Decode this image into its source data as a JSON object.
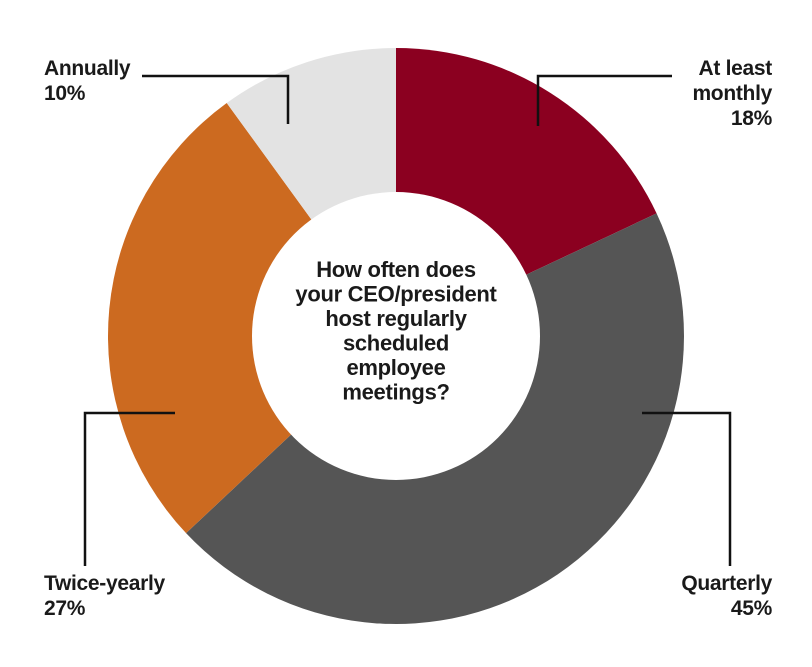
{
  "chart_data": {
    "type": "donut",
    "title": "How often does your CEO/president host regularly scheduled employee meetings?",
    "center_lines": [
      "How often does",
      "your CEO/president",
      "host regularly",
      "scheduled",
      "employee",
      "meetings?"
    ],
    "slices": [
      {
        "label": "At least monthly",
        "label_lines": [
          "At least",
          "monthly"
        ],
        "value": 18,
        "value_label": "18%",
        "color": "#8b0020"
      },
      {
        "label": "Quarterly",
        "label_lines": [
          "Quarterly"
        ],
        "value": 45,
        "value_label": "45%",
        "color": "#555555"
      },
      {
        "label": "Twice-yearly",
        "label_lines": [
          "Twice-yearly"
        ],
        "value": 27,
        "value_label": "27%",
        "color": "#cc6a20"
      },
      {
        "label": "Annually",
        "label_lines": [
          "Annually"
        ],
        "value": 10,
        "value_label": "10%",
        "color": "#e3e3e3"
      }
    ],
    "start_angle": "12 o'clock",
    "direction": "clockwise",
    "legend": "none"
  }
}
